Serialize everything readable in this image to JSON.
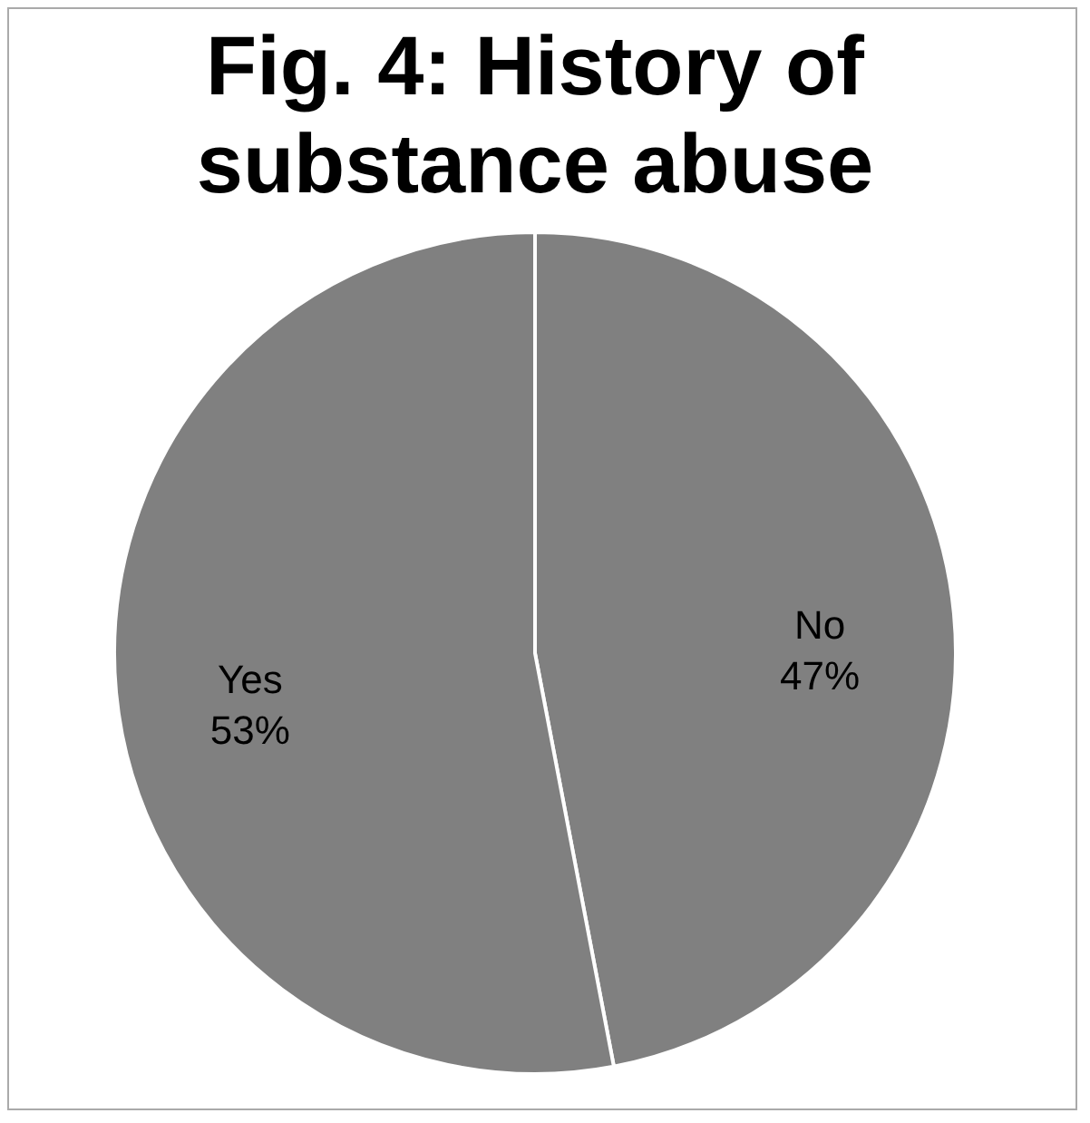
{
  "chart_data": {
    "type": "pie",
    "title": "Fig. 4: History of substance abuse",
    "categories": [
      "No",
      "Yes"
    ],
    "values": [
      47,
      53
    ],
    "colors": [
      "#808080",
      "#808080"
    ],
    "value_labels": [
      "47%",
      "53%"
    ],
    "legend": false
  }
}
